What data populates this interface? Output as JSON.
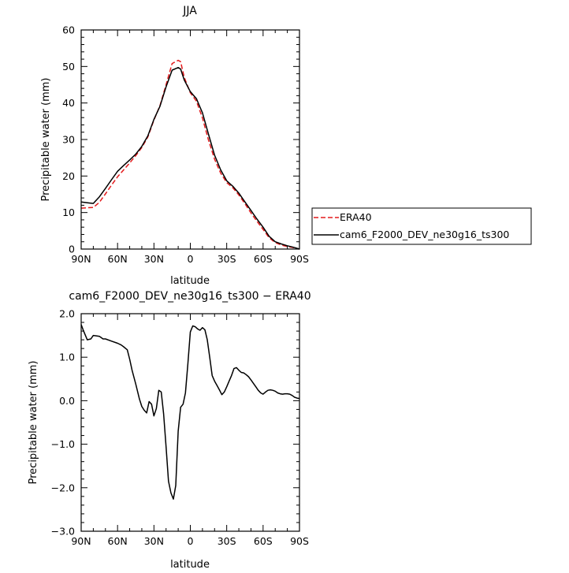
{
  "chart_data": [
    {
      "type": "line",
      "title": "JJA",
      "xlabel": "latitude",
      "ylabel": "Precipitable water (mm)",
      "x_ticks": [
        90,
        60,
        30,
        0,
        -30,
        -60,
        -90
      ],
      "x_tick_labels": [
        "90N",
        "60N",
        "30N",
        "0",
        "30S",
        "60S",
        "90S"
      ],
      "xlim": [
        90,
        -90
      ],
      "y_ticks": [
        0,
        10,
        20,
        30,
        40,
        50,
        60
      ],
      "y_tick_labels": [
        "0",
        "10",
        "20",
        "30",
        "40",
        "50",
        "60"
      ],
      "ylim": [
        0,
        60
      ],
      "legend_position": "right",
      "series": [
        {
          "name": "ERA40",
          "color": "#e41a1c",
          "dash": "dashed",
          "x": [
            90,
            85,
            80,
            75,
            70,
            65,
            60,
            55,
            50,
            45,
            40,
            35,
            30,
            25,
            20,
            15,
            10,
            8,
            5,
            0,
            -5,
            -10,
            -15,
            -20,
            -25,
            -30,
            -35,
            -40,
            -45,
            -50,
            -55,
            -60,
            -65,
            -70,
            -75,
            -80,
            -85,
            -90
          ],
          "y": [
            11.2,
            11.3,
            11.4,
            12.8,
            15.1,
            17.5,
            19.8,
            21.7,
            23.6,
            25.6,
            27.8,
            30.7,
            35.3,
            39.3,
            45,
            50.8,
            51.7,
            51.3,
            47,
            42.8,
            40.5,
            35.9,
            29.8,
            24.6,
            20.8,
            18.2,
            16.8,
            14.8,
            12.4,
            9.9,
            7.6,
            5.4,
            3.1,
            1.8,
            1.1,
            0.7,
            0.4,
            0
          ]
        },
        {
          "name": "cam6_F2000_DEV_ne30g16_ts300",
          "color": "#000000",
          "dash": "solid",
          "x": [
            90,
            85,
            80,
            75,
            70,
            65,
            60,
            55,
            50,
            45,
            40,
            35,
            30,
            25,
            20,
            15,
            10,
            8,
            5,
            0,
            -5,
            -10,
            -15,
            -20,
            -25,
            -30,
            -35,
            -40,
            -45,
            -50,
            -55,
            -60,
            -65,
            -70,
            -75,
            -80,
            -85,
            -90
          ],
          "y": [
            12.9,
            12.7,
            12.5,
            14.3,
            16.6,
            19,
            21.3,
            22.9,
            24.4,
            26,
            28.1,
            31,
            35.5,
            39.1,
            44.4,
            49,
            49.7,
            49.3,
            46.3,
            43.1,
            41.2,
            37.3,
            31.4,
            25.7,
            21.7,
            18.7,
            17.2,
            15.3,
            12.9,
            10.6,
            8.2,
            6,
            3.5,
            2,
            1.4,
            0.9,
            0.5,
            0
          ]
        }
      ]
    },
    {
      "type": "line",
      "title": "cam6_F2000_DEV_ne30g16_ts300 − ERA40",
      "xlabel": "latitude",
      "ylabel": "Precipitable water (mm)",
      "x_ticks": [
        90,
        60,
        30,
        0,
        -30,
        -60,
        -90
      ],
      "x_tick_labels": [
        "90N",
        "60N",
        "30N",
        "0",
        "30S",
        "60S",
        "90S"
      ],
      "xlim": [
        90,
        -90
      ],
      "y_ticks": [
        -3,
        -2,
        -1,
        0,
        1,
        2
      ],
      "y_tick_labels": [
        "−3.0",
        "−2.0",
        "−1.0",
        "0.0",
        "1.0",
        "2.0"
      ],
      "ylim": [
        -3,
        2
      ],
      "series": [
        {
          "color": "#000000",
          "dash": "solid",
          "x": [
            90,
            88,
            85,
            82,
            80,
            77,
            75,
            72,
            70,
            65,
            60,
            57,
            55,
            52,
            50,
            48,
            45,
            42,
            40,
            38,
            36,
            34,
            32,
            30,
            28,
            26,
            24,
            22,
            20,
            18,
            16,
            14,
            12,
            10,
            8,
            6,
            4,
            2,
            0,
            -2,
            -4,
            -6,
            -8,
            -10,
            -12,
            -14,
            -16,
            -18,
            -20,
            -22,
            -24,
            -26,
            -28,
            -30,
            -32,
            -34,
            -36,
            -38,
            -40,
            -42,
            -44,
            -46,
            -48,
            -50,
            -52,
            -54,
            -56,
            -58,
            -60,
            -62,
            -64,
            -66,
            -68,
            -70,
            -72,
            -74,
            -76,
            -78,
            -80,
            -82,
            -84,
            -86,
            -88,
            -90
          ],
          "y": [
            1.75,
            1.6,
            1.4,
            1.42,
            1.5,
            1.49,
            1.48,
            1.42,
            1.42,
            1.37,
            1.32,
            1.28,
            1.24,
            1.17,
            0.95,
            0.7,
            0.38,
            0.04,
            -0.13,
            -0.22,
            -0.28,
            -0.02,
            -0.08,
            -0.35,
            -0.18,
            0.24,
            0.2,
            -0.3,
            -1.05,
            -1.85,
            -2.12,
            -2.26,
            -1.95,
            -0.7,
            -0.15,
            -0.08,
            0.18,
            0.85,
            1.58,
            1.72,
            1.7,
            1.65,
            1.62,
            1.68,
            1.63,
            1.4,
            1.0,
            0.58,
            0.45,
            0.35,
            0.25,
            0.14,
            0.2,
            0.32,
            0.45,
            0.58,
            0.74,
            0.76,
            0.7,
            0.65,
            0.64,
            0.6,
            0.55,
            0.48,
            0.4,
            0.32,
            0.24,
            0.18,
            0.15,
            0.2,
            0.24,
            0.25,
            0.24,
            0.22,
            0.18,
            0.16,
            0.15,
            0.16,
            0.16,
            0.15,
            0.12,
            0.08,
            0.06,
            0.05
          ]
        }
      ]
    }
  ]
}
